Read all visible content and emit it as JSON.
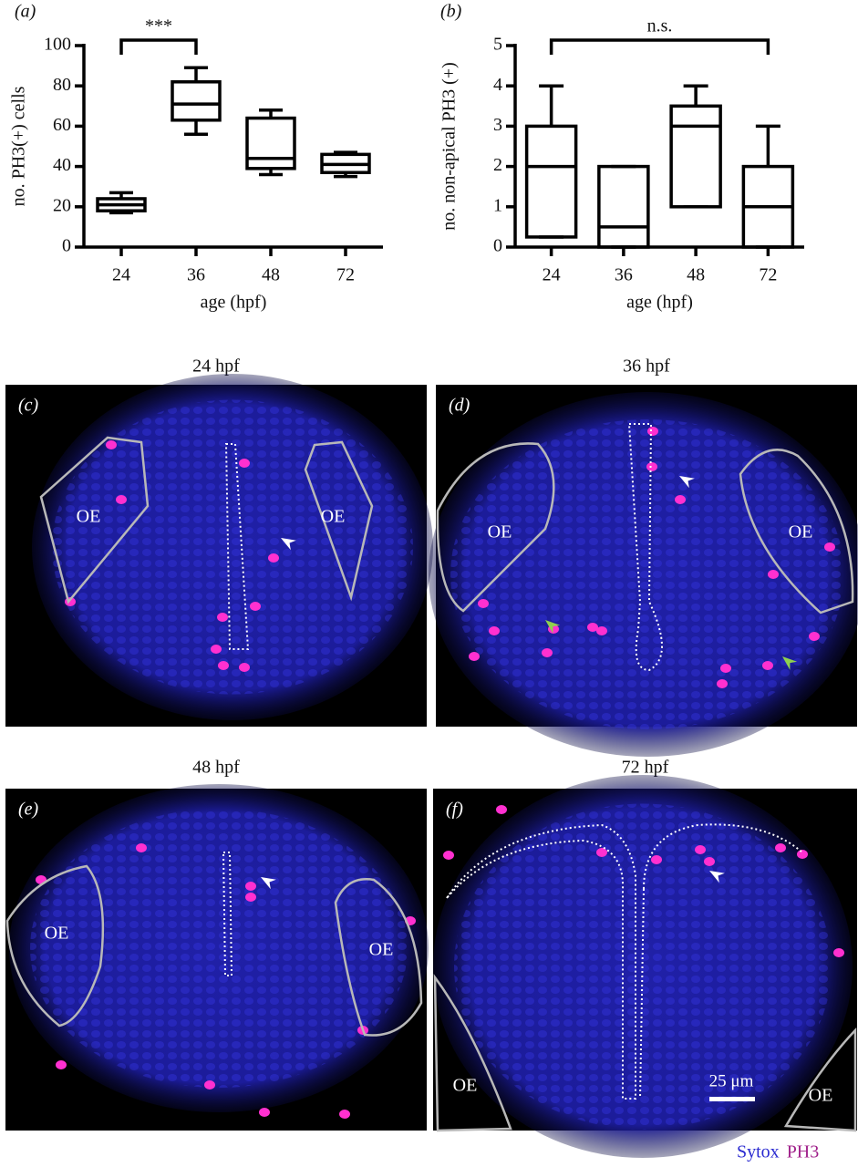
{
  "chart_data": [
    {
      "type": "box",
      "panel_label": "(a)",
      "y_label": "no. PH3(+) cells",
      "x_label": "age (hpf)",
      "categories": [
        "24",
        "36",
        "48",
        "72"
      ],
      "boxes": [
        {
          "min": 17,
          "q1": 18,
          "median": 21,
          "q3": 24,
          "max": 27
        },
        {
          "min": 56,
          "q1": 63,
          "median": 71,
          "q3": 82,
          "max": 89
        },
        {
          "min": 36,
          "q1": 39,
          "median": 44,
          "q3": 64,
          "max": 68
        },
        {
          "min": 35,
          "q1": 37,
          "median": 41,
          "q3": 46,
          "max": 47
        }
      ],
      "color": "#ffffff",
      "ylim": [
        0,
        100
      ],
      "yticks": [
        0,
        20,
        40,
        60,
        80,
        100
      ],
      "bracket": {
        "text": "***",
        "between": [
          "24",
          "36"
        ]
      }
    },
    {
      "type": "box",
      "panel_label": "(b)",
      "y_label": "no. non-apical PH3 (+)",
      "x_label": "age (hpf)",
      "categories": [
        "24",
        "36",
        "48",
        "72"
      ],
      "boxes": [
        {
          "min": 0.25,
          "q1": 0.25,
          "median": 2,
          "q3": 3,
          "max": 4
        },
        {
          "min": 0,
          "q1": 0,
          "median": 0.5,
          "q3": 2,
          "max": 2
        },
        {
          "min": 1,
          "q1": 1,
          "median": 3,
          "q3": 3.5,
          "max": 4
        },
        {
          "min": 0,
          "q1": 0,
          "median": 1,
          "q3": 2,
          "max": 3
        }
      ],
      "color": "#c0c0c0",
      "ylim": [
        0,
        5
      ],
      "yticks": [
        0,
        1,
        2,
        3,
        4,
        5
      ],
      "bracket": {
        "text": "n.s.",
        "between": [
          "24",
          "72"
        ]
      }
    }
  ],
  "images": [
    {
      "label": "(c)",
      "title": "24 hpf",
      "regions": [
        "OE",
        "OE"
      ]
    },
    {
      "label": "(d)",
      "title": "36 hpf",
      "regions": [
        "OE",
        "OE"
      ]
    },
    {
      "label": "(e)",
      "title": "48 hpf",
      "regions": [
        "OE",
        "OE"
      ]
    },
    {
      "label": "(f)",
      "title": "72 hpf",
      "regions": [
        "OE",
        "OE"
      ],
      "scale_bar": "25 μm"
    }
  ],
  "stain_legend": [
    {
      "name": "Sytox",
      "color": "#2a2ad0"
    },
    {
      "name": "PH3",
      "color": "#a0208a"
    }
  ]
}
